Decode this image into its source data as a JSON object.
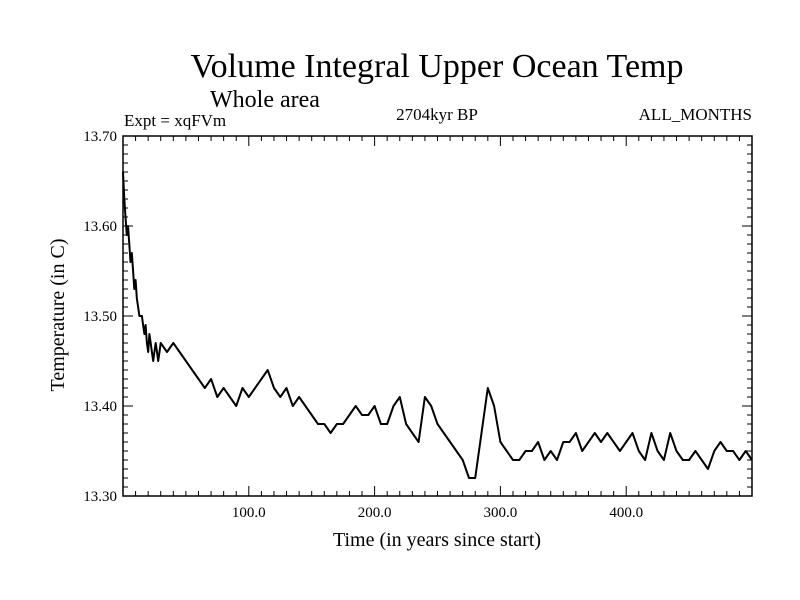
{
  "chart_data": {
    "type": "line",
    "title": "Volume Integral Upper Ocean Temp",
    "subtitle": "Whole area",
    "annotations": {
      "left": "Expt = xqFVm",
      "center": "2704kyr BP",
      "right": "ALL_MONTHS"
    },
    "xlabel": "Time (in years since start)",
    "ylabel": "Temperature (in C)",
    "xlim": [
      0,
      500
    ],
    "ylim": [
      13.3,
      13.7
    ],
    "x_ticks": [
      100,
      200,
      300,
      400
    ],
    "x_tick_labels": [
      "100.0",
      "200.0",
      "300.0",
      "400.0"
    ],
    "y_ticks": [
      13.3,
      13.4,
      13.5,
      13.6,
      13.7
    ],
    "y_tick_labels": [
      "13.30",
      "13.40",
      "13.50",
      "13.60",
      "13.70"
    ],
    "series": [
      {
        "name": "Volume Integral Upper Ocean Temp",
        "color": "#000000",
        "x": [
          0,
          1,
          2,
          3,
          4,
          5,
          6,
          7,
          8,
          9,
          10,
          11,
          12,
          13,
          14,
          15,
          16,
          17,
          18,
          19,
          20,
          21,
          22,
          23,
          24,
          25,
          26,
          27,
          28,
          29,
          30,
          35,
          40,
          45,
          50,
          55,
          60,
          65,
          70,
          75,
          80,
          85,
          90,
          95,
          100,
          105,
          110,
          115,
          120,
          125,
          130,
          135,
          140,
          145,
          150,
          155,
          160,
          165,
          170,
          175,
          180,
          185,
          190,
          195,
          200,
          205,
          210,
          215,
          220,
          225,
          230,
          235,
          240,
          245,
          250,
          255,
          260,
          265,
          270,
          275,
          280,
          285,
          290,
          295,
          300,
          305,
          310,
          315,
          320,
          325,
          330,
          335,
          340,
          345,
          350,
          355,
          360,
          365,
          370,
          375,
          380,
          385,
          390,
          395,
          400,
          405,
          410,
          415,
          420,
          425,
          430,
          435,
          440,
          445,
          450,
          455,
          460,
          465,
          470,
          475,
          480,
          485,
          490,
          495,
          500
        ],
        "values": [
          13.66,
          13.63,
          13.61,
          13.59,
          13.6,
          13.58,
          13.56,
          13.57,
          13.55,
          13.53,
          13.54,
          13.52,
          13.51,
          13.5,
          13.5,
          13.5,
          13.49,
          13.48,
          13.49,
          13.47,
          13.46,
          13.48,
          13.47,
          13.46,
          13.45,
          13.46,
          13.47,
          13.46,
          13.45,
          13.46,
          13.47,
          13.46,
          13.47,
          13.46,
          13.45,
          13.44,
          13.43,
          13.42,
          13.43,
          13.41,
          13.42,
          13.41,
          13.4,
          13.42,
          13.41,
          13.42,
          13.43,
          13.44,
          13.42,
          13.41,
          13.42,
          13.4,
          13.41,
          13.4,
          13.39,
          13.38,
          13.38,
          13.37,
          13.38,
          13.38,
          13.39,
          13.4,
          13.39,
          13.39,
          13.4,
          13.38,
          13.38,
          13.4,
          13.41,
          13.38,
          13.37,
          13.36,
          13.41,
          13.4,
          13.38,
          13.37,
          13.36,
          13.35,
          13.34,
          13.32,
          13.32,
          13.37,
          13.42,
          13.4,
          13.36,
          13.35,
          13.34,
          13.34,
          13.35,
          13.35,
          13.36,
          13.34,
          13.35,
          13.34,
          13.36,
          13.36,
          13.37,
          13.35,
          13.36,
          13.37,
          13.36,
          13.37,
          13.36,
          13.35,
          13.36,
          13.37,
          13.35,
          13.34,
          13.37,
          13.35,
          13.34,
          13.37,
          13.35,
          13.34,
          13.34,
          13.35,
          13.34,
          13.33,
          13.35,
          13.36,
          13.35,
          13.35,
          13.34,
          13.35,
          13.34
        ]
      }
    ],
    "grid": false,
    "legend": "none"
  }
}
